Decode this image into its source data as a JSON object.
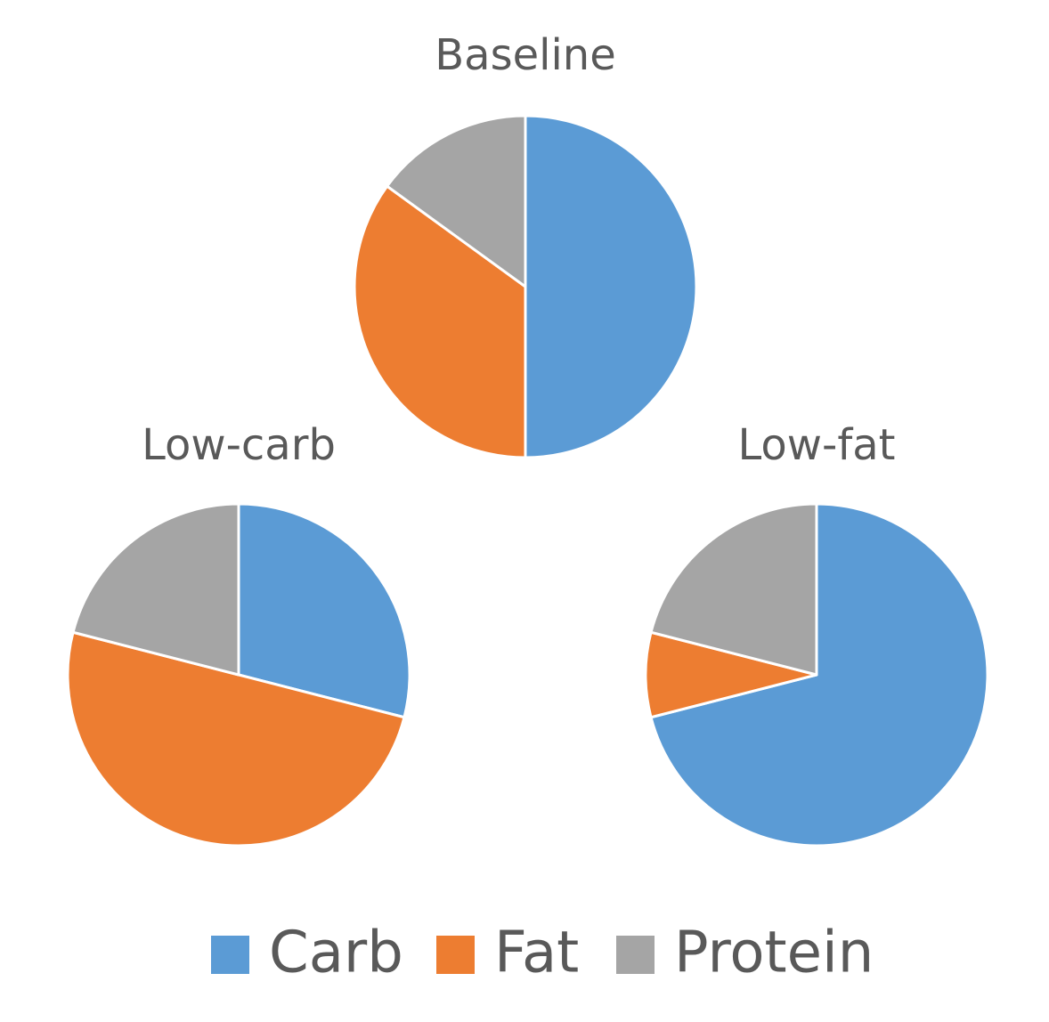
{
  "chart_data": [
    {
      "type": "pie",
      "title": "Baseline",
      "categories": [
        "Carb",
        "Fat",
        "Protein"
      ],
      "values": [
        50,
        35,
        15
      ],
      "colors": [
        "#5b9bd5",
        "#ed7d31",
        "#a5a5a5"
      ]
    },
    {
      "type": "pie",
      "title": "Low-carb",
      "categories": [
        "Carb",
        "Fat",
        "Protein"
      ],
      "values": [
        29,
        50,
        21
      ],
      "colors": [
        "#5b9bd5",
        "#ed7d31",
        "#a5a5a5"
      ]
    },
    {
      "type": "pie",
      "title": "Low-fat",
      "categories": [
        "Carb",
        "Fat",
        "Protein"
      ],
      "values": [
        71,
        8,
        21
      ],
      "colors": [
        "#5b9bd5",
        "#ed7d31",
        "#a5a5a5"
      ]
    }
  ]
}
